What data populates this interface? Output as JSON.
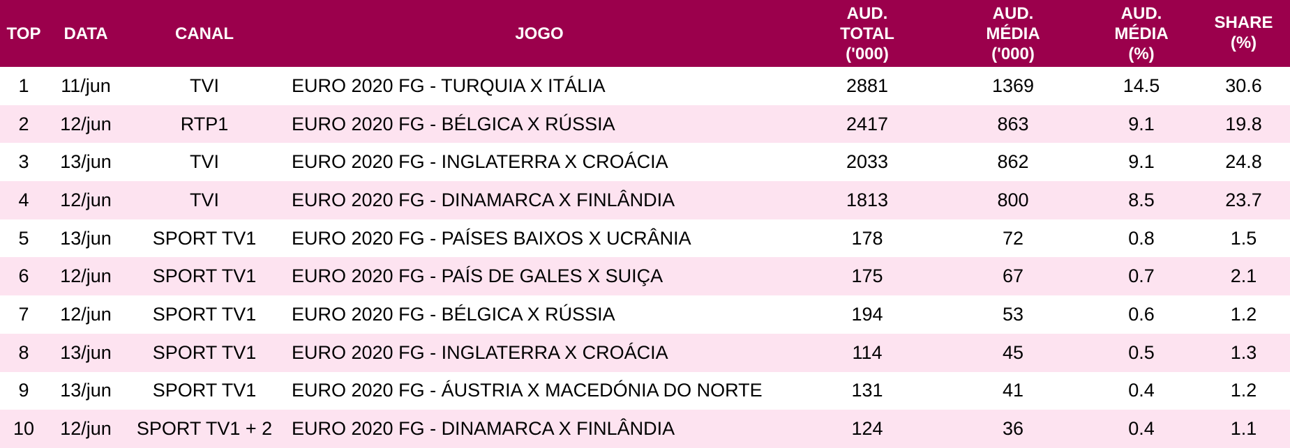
{
  "header": {
    "top": "TOP",
    "data": "DATA",
    "canal": "CANAL",
    "jogo": "JOGO",
    "aud_total": [
      "AUD.",
      "TOTAL",
      "('000)"
    ],
    "aud_media": [
      "AUD.",
      "MÉDIA",
      "('000)"
    ],
    "aud_media_pct": [
      "AUD.",
      "MÉDIA",
      "(%)"
    ],
    "share": [
      "SHARE",
      "(%)"
    ]
  },
  "colors": {
    "header_bg": "#9b004c",
    "header_text": "#ffffff",
    "row_alt": "#fde3f0"
  },
  "rows": [
    {
      "top": "1",
      "data": "11/jun",
      "canal": "TVI",
      "jogo": "EURO 2020 FG - TURQUIA X ITÁLIA",
      "aud_total": "2881",
      "aud_media": "1369",
      "aud_media_pct": "14.5",
      "share": "30.6"
    },
    {
      "top": "2",
      "data": "12/jun",
      "canal": "RTP1",
      "jogo": "EURO 2020 FG - BÉLGICA X RÚSSIA",
      "aud_total": "2417",
      "aud_media": "863",
      "aud_media_pct": "9.1",
      "share": "19.8"
    },
    {
      "top": "3",
      "data": "13/jun",
      "canal": "TVI",
      "jogo": "EURO 2020 FG - INGLATERRA X CROÁCIA",
      "aud_total": "2033",
      "aud_media": "862",
      "aud_media_pct": "9.1",
      "share": "24.8"
    },
    {
      "top": "4",
      "data": "12/jun",
      "canal": "TVI",
      "jogo": "EURO 2020 FG - DINAMARCA X FINLÂNDIA",
      "aud_total": "1813",
      "aud_media": "800",
      "aud_media_pct": "8.5",
      "share": "23.7"
    },
    {
      "top": "5",
      "data": "13/jun",
      "canal": "SPORT TV1",
      "jogo": "EURO 2020 FG - PAÍSES BAIXOS X UCRÂNIA",
      "aud_total": "178",
      "aud_media": "72",
      "aud_media_pct": "0.8",
      "share": "1.5"
    },
    {
      "top": "6",
      "data": "12/jun",
      "canal": "SPORT TV1",
      "jogo": "EURO 2020 FG - PAÍS DE GALES X SUIÇA",
      "aud_total": "175",
      "aud_media": "67",
      "aud_media_pct": "0.7",
      "share": "2.1"
    },
    {
      "top": "7",
      "data": "12/jun",
      "canal": "SPORT TV1",
      "jogo": "EURO 2020 FG - BÉLGICA X RÚSSIA",
      "aud_total": "194",
      "aud_media": "53",
      "aud_media_pct": "0.6",
      "share": "1.2"
    },
    {
      "top": "8",
      "data": "13/jun",
      "canal": "SPORT TV1",
      "jogo": "EURO 2020 FG - INGLATERRA X CROÁCIA",
      "aud_total": "114",
      "aud_media": "45",
      "aud_media_pct": "0.5",
      "share": "1.3"
    },
    {
      "top": "9",
      "data": "13/jun",
      "canal": "SPORT TV1",
      "jogo": "EURO 2020 FG - ÁUSTRIA X MACEDÓNIA DO NORTE",
      "aud_total": "131",
      "aud_media": "41",
      "aud_media_pct": "0.4",
      "share": "1.2"
    },
    {
      "top": "10",
      "data": "12/jun",
      "canal": "SPORT TV1 + 2",
      "jogo": "EURO 2020 FG - DINAMARCA X FINLÂNDIA",
      "aud_total": "124",
      "aud_media": "36",
      "aud_media_pct": "0.4",
      "share": "1.1"
    }
  ]
}
